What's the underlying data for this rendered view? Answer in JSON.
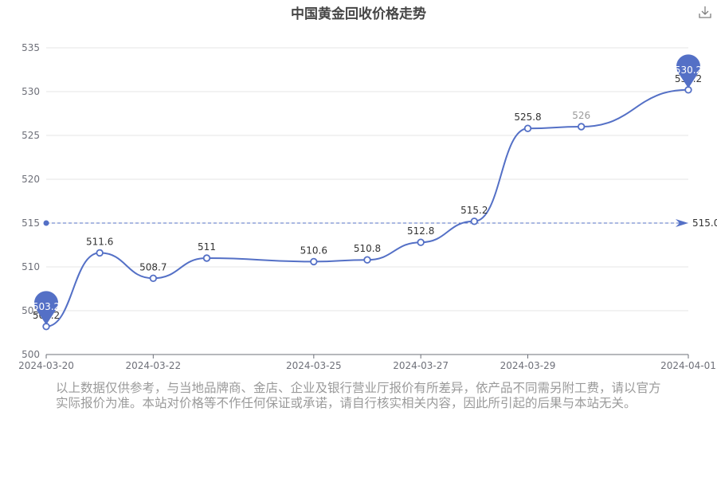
{
  "title": "中国黄金回收价格走势",
  "download_icon": "download-icon",
  "colors": {
    "line": "#5470c6",
    "grid": "#e6e6e6",
    "axis": "#6e7079",
    "label": "#333333",
    "muted": "#9a9a9a"
  },
  "chart_data": {
    "type": "line",
    "smooth": true,
    "x": [
      "2024-03-20",
      "2024-03-21",
      "2024-03-22",
      "2024-03-23",
      "2024-03-25",
      "2024-03-26",
      "2024-03-27",
      "2024-03-28",
      "2024-03-29",
      "2024-03-30",
      "2024-04-01"
    ],
    "xtick_labels": [
      "2024-03-20",
      "2024-03-22",
      "2024-03-25",
      "2024-03-27",
      "2024-03-29",
      "2024-04-01"
    ],
    "series": [
      {
        "values": [
          503.2,
          511.6,
          508.7,
          511,
          510.6,
          510.8,
          512.8,
          515.2,
          525.8,
          526,
          530.2
        ],
        "labels": [
          "503.2",
          "511.6",
          "508.7",
          "511",
          "510.6",
          "510.8",
          "512.8",
          "515.2",
          "525.8",
          "526",
          "530.2"
        ]
      }
    ],
    "ylim": [
      500,
      535
    ],
    "yticks": [
      500,
      505,
      510,
      515,
      520,
      525,
      530,
      535
    ],
    "grid": true,
    "markpoints": [
      {
        "type": "min",
        "value": 503.2,
        "label": "503.2"
      },
      {
        "type": "max",
        "value": 530.2,
        "label": "530.2"
      }
    ],
    "markline": {
      "type": "average",
      "value": 515.0,
      "label": "515.0"
    }
  },
  "disclaimer": "以上数据仅供参考，与当地品牌商、金店、企业及银行营业厅报价有所差异，依产品不同需另附工费，请以官方实际报价为准。本站对价格等不作任何保证或承诺，请自行核实相关内容，因此所引起的后果与本站无关。"
}
